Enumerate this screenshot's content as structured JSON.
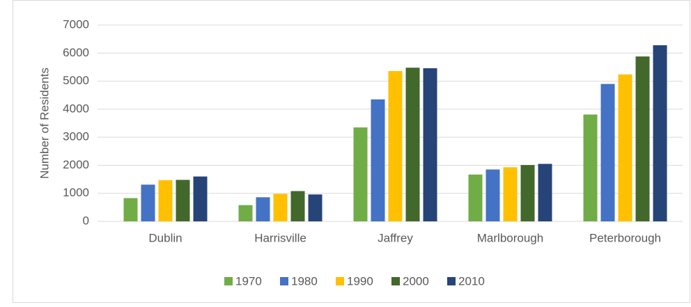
{
  "chart_data": {
    "type": "bar",
    "y_label": "Number of Residents",
    "categories": [
      "Dublin",
      "Harrisville",
      "Jaffrey",
      "Marlborough",
      "Peterborough"
    ],
    "series": [
      {
        "name": "1970",
        "color": "#70ad47",
        "values": [
          830,
          580,
          3350,
          1670,
          3810
        ]
      },
      {
        "name": "1980",
        "color": "#4472c4",
        "values": [
          1310,
          860,
          4350,
          1850,
          4900
        ]
      },
      {
        "name": "1990",
        "color": "#ffc000",
        "values": [
          1470,
          980,
          5360,
          1930,
          5240
        ]
      },
      {
        "name": "2000",
        "color": "#43682b",
        "values": [
          1480,
          1080,
          5480,
          2010,
          5880
        ]
      },
      {
        "name": "2010",
        "color": "#264478",
        "values": [
          1600,
          960,
          5460,
          2050,
          6280
        ]
      }
    ],
    "ylim": [
      0,
      7000
    ],
    "yticks": [
      0,
      1000,
      2000,
      3000,
      4000,
      5000,
      6000,
      7000
    ],
    "grid": true,
    "legend": "bottom"
  }
}
